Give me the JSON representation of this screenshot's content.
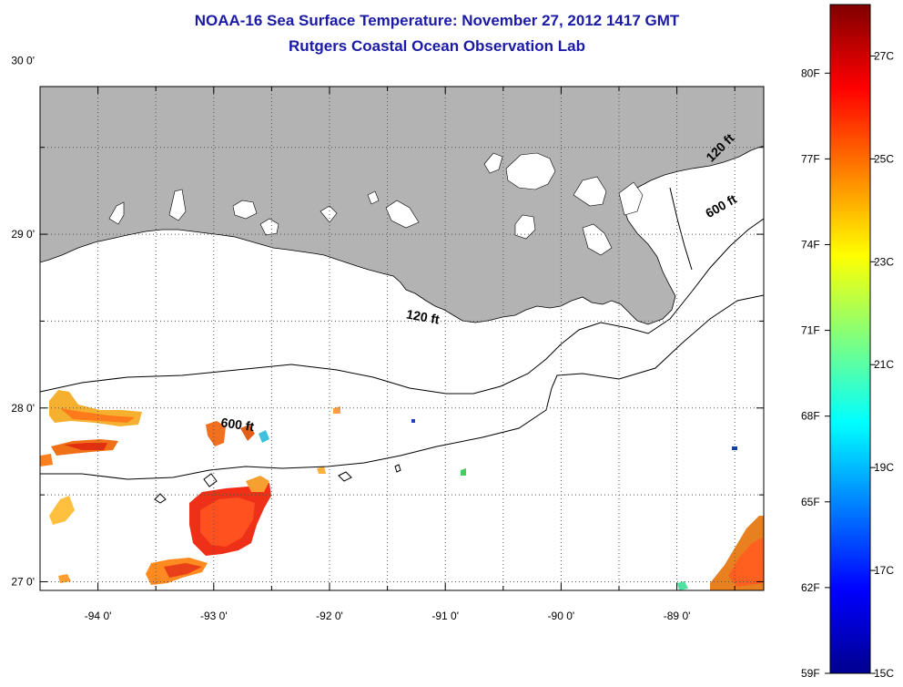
{
  "title": "NOAA-16 Sea Surface Temperature:  November 27, 2012 1417 GMT",
  "subtitle": "Rutgers Coastal Ocean Observation Lab",
  "colors": {
    "land": "#b3b3b3",
    "title": "#1a1aa6",
    "ocean_nodata": "#ffffff"
  },
  "map": {
    "lon_range": [
      -94.5,
      -88.25
    ],
    "lat_range": [
      26.95,
      29.85
    ],
    "lon_ticks": [
      {
        "value": -94,
        "label": "-94 0'"
      },
      {
        "value": -93,
        "label": "-93 0'"
      },
      {
        "value": -92,
        "label": "-92 0'"
      },
      {
        "value": -91,
        "label": "-91 0'"
      },
      {
        "value": -90,
        "label": "-90 0'"
      },
      {
        "value": -89,
        "label": "-89 0'"
      }
    ],
    "lat_ticks": [
      {
        "value": 30,
        "label": "30 0'"
      },
      {
        "value": 29,
        "label": "29 0'"
      },
      {
        "value": 28,
        "label": "28 0'"
      },
      {
        "value": 27,
        "label": "27 0'"
      }
    ],
    "contour_labels": [
      {
        "text": "120 ft",
        "lon": -91.2,
        "lat": 28.5,
        "angle": 10
      },
      {
        "text": "600 ft",
        "lon": -92.8,
        "lat": 27.88,
        "angle": 8
      },
      {
        "text": "120 ft",
        "lon": -88.6,
        "lat": 29.48,
        "angle": -45
      },
      {
        "text": "600 ft",
        "lon": -88.6,
        "lat": 29.14,
        "angle": -30
      }
    ]
  },
  "colorbar": {
    "range_c": [
      15,
      28
    ],
    "fahrenheit_labels": [
      "80F",
      "77F",
      "74F",
      "71F",
      "68F",
      "65F",
      "62F",
      "59F"
    ],
    "celsius_labels": [
      "27C",
      "25C",
      "23C",
      "21C",
      "19C",
      "17C",
      "15C"
    ]
  }
}
